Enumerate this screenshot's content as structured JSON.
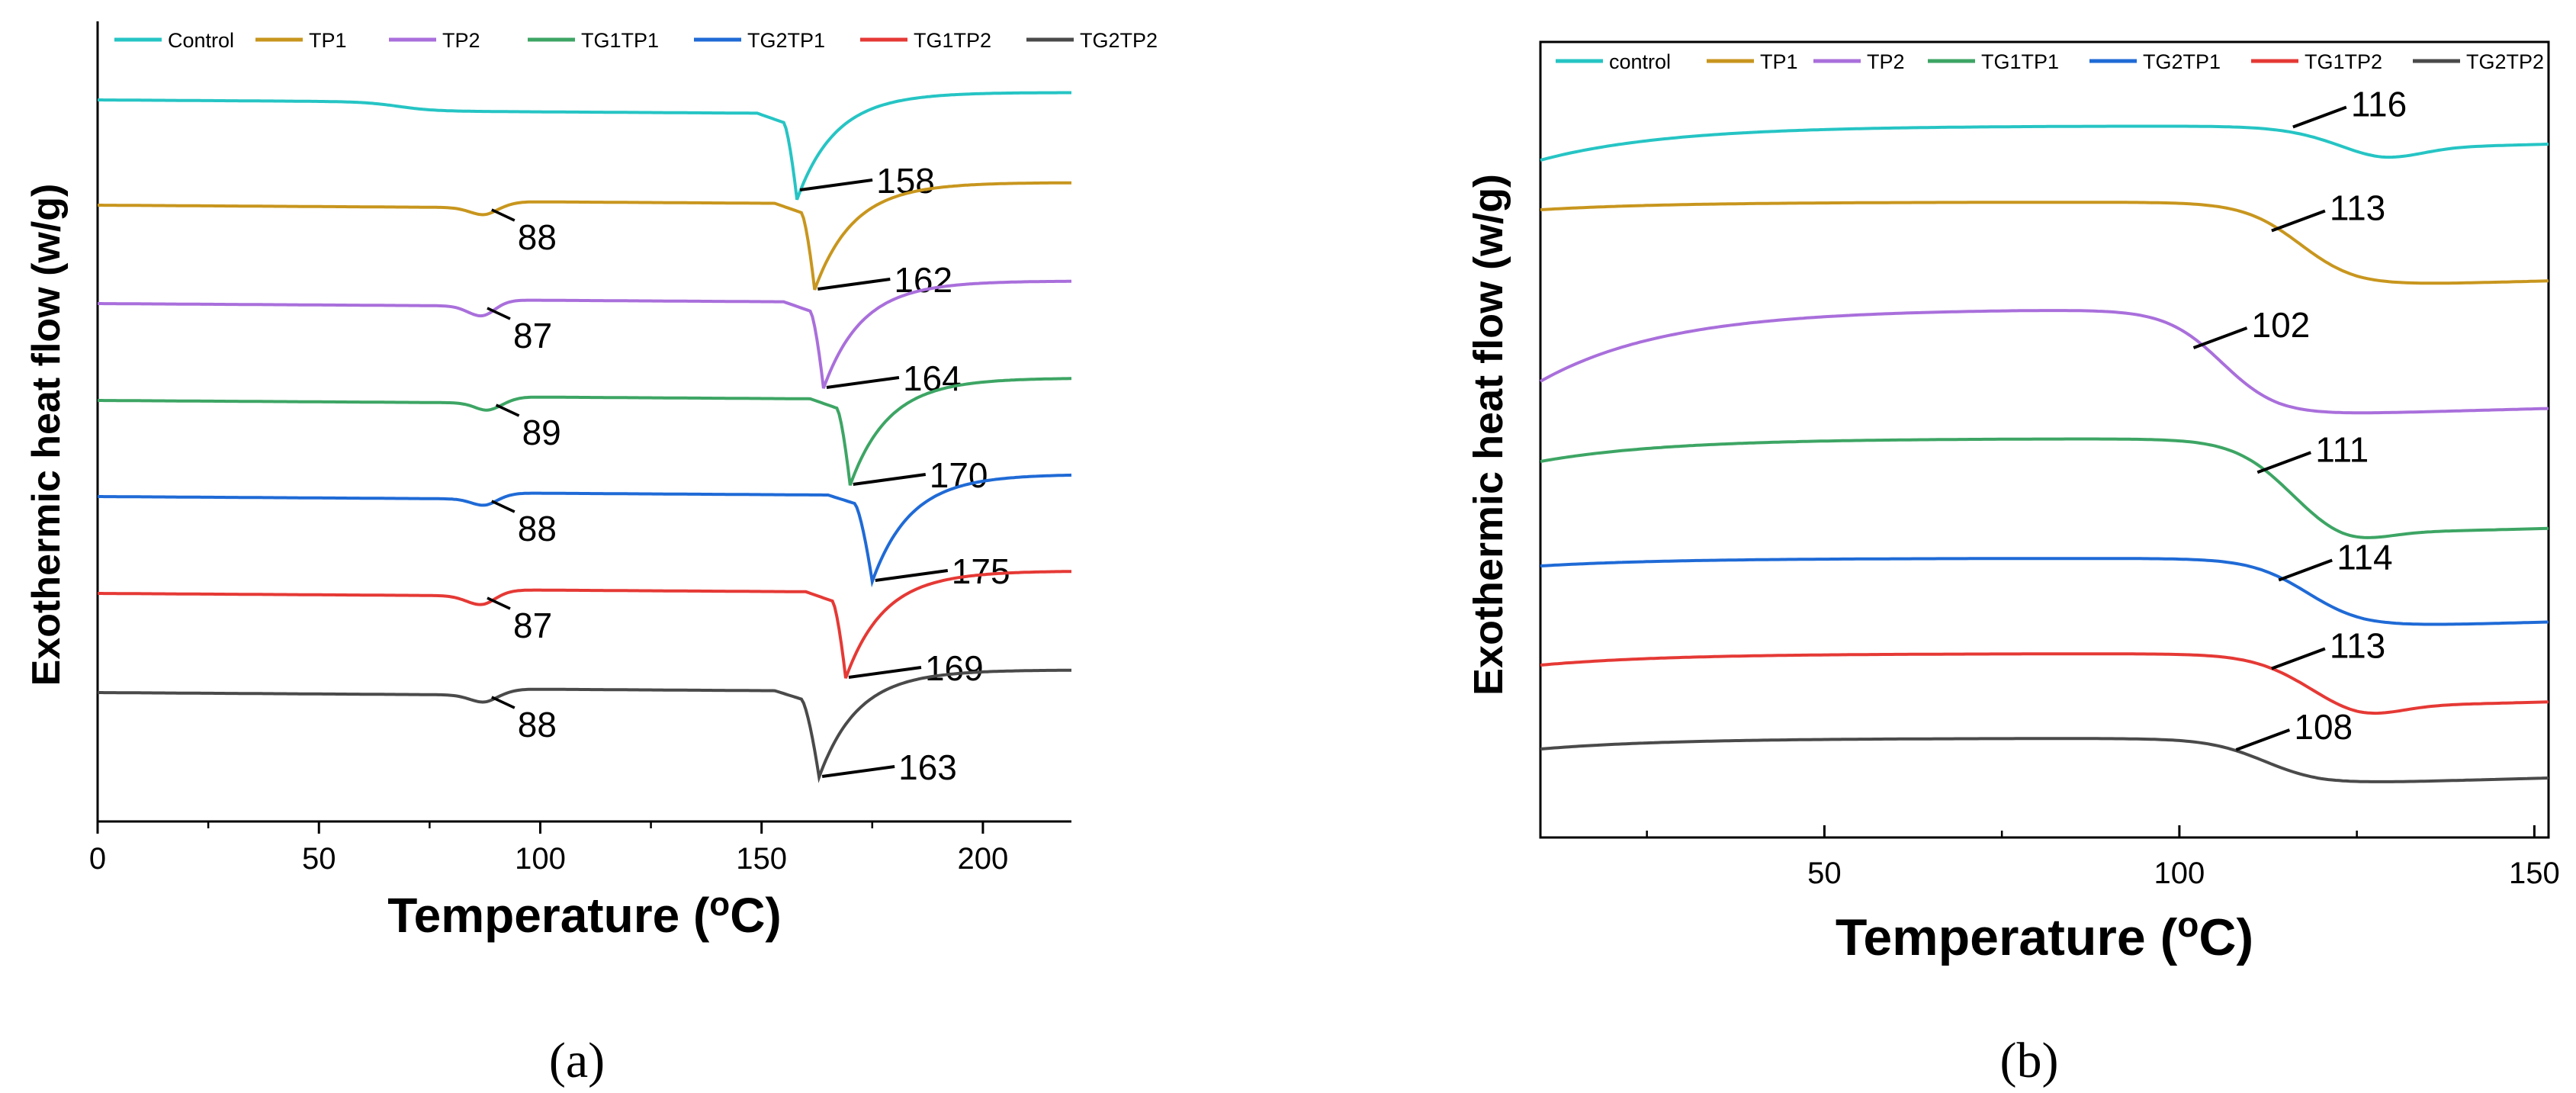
{
  "chart_data": [
    {
      "type": "line",
      "panel_label": "(a)",
      "xlabel": "Temperature (",
      "xlabel_sup": "o",
      "xlabel_end": "C)",
      "ylabel": "Exothermic heat flow (w/g)",
      "xlim": [
        0,
        220
      ],
      "xticks": [
        0,
        50,
        100,
        150,
        200
      ],
      "legend_position": "top",
      "series": [
        {
          "name": "Control",
          "color": "#26C4C4",
          "events": [],
          "onset": 155,
          "peak": 158,
          "annotation": "158"
        },
        {
          "name": "TP1",
          "color": "#C8961E",
          "events": [
            {
              "at": 88,
              "depth": 0.22,
              "width": 3.5
            }
          ],
          "onset": 159,
          "peak": 162,
          "annotation": "162",
          "small_annotation": "88"
        },
        {
          "name": "TP2",
          "color": "#A96FDB",
          "events": [
            {
              "at": 87,
              "depth": 0.28,
              "width": 3.2
            }
          ],
          "onset": 161,
          "peak": 164,
          "annotation": "164",
          "small_annotation": "87"
        },
        {
          "name": "TG1TP1",
          "color": "#3DA564",
          "events": [
            {
              "at": 89,
              "depth": 0.25,
              "width": 3.2
            }
          ],
          "onset": 167,
          "peak": 170,
          "annotation": "170",
          "small_annotation": "89"
        },
        {
          "name": "TG2TP1",
          "color": "#1F6AD6",
          "events": [
            {
              "at": 88,
              "depth": 0.2,
              "width": 3.2
            }
          ],
          "onset": 171,
          "peak": 175,
          "annotation": "175",
          "small_annotation": "88"
        },
        {
          "name": "TG1TP2",
          "color": "#E53935",
          "events": [
            {
              "at": 87,
              "depth": 0.25,
              "width": 3.5
            }
          ],
          "onset": 166,
          "peak": 169,
          "annotation": "169",
          "small_annotation": "87"
        },
        {
          "name": "TG2TP2",
          "color": "#4A4A4A",
          "events": [
            {
              "at": 88,
              "depth": 0.22,
              "width": 3.5
            }
          ],
          "onset": 159,
          "peak": 163,
          "annotation": "163",
          "small_annotation": "88"
        }
      ]
    },
    {
      "type": "line",
      "panel_label": "(b)",
      "xlabel": "Temperature (",
      "xlabel_sup": "o",
      "xlabel_end": "C)",
      "ylabel": "Exothermic heat flow (w/g)",
      "xlim": [
        10,
        152
      ],
      "xticks": [
        50,
        100,
        150
      ],
      "legend_position": "top",
      "series": [
        {
          "name": "control",
          "color": "#26C4C4",
          "peak": 116,
          "annotation": "116"
        },
        {
          "name": "TP1",
          "color": "#C8961E",
          "peak": 113,
          "annotation": "113"
        },
        {
          "name": "TP2",
          "color": "#A96FDB",
          "peak": 102,
          "annotation": "102"
        },
        {
          "name": "TG1TP1",
          "color": "#3DA564",
          "peak": 111,
          "annotation": "111"
        },
        {
          "name": "TG2TP1",
          "color": "#1F6AD6",
          "peak": 114,
          "annotation": "114"
        },
        {
          "name": "TG1TP2",
          "color": "#E53935",
          "peak": 113,
          "annotation": "113"
        },
        {
          "name": "TG2TP2",
          "color": "#4A4A4A",
          "peak": 108,
          "annotation": "108"
        }
      ]
    }
  ]
}
